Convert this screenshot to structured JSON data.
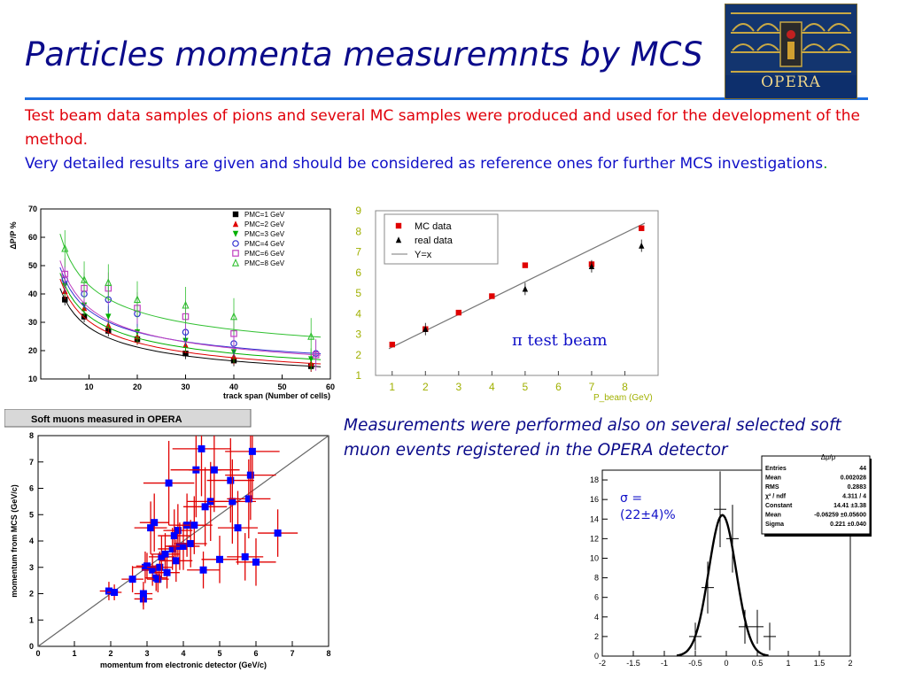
{
  "slide": {
    "title": "Particles momenta measuremnts by MCS",
    "logo_text": "OPERA",
    "para_red": "Test beam data samples of pions  and several MC samples were produced and used for the development of the method.",
    "para_blue": "Very detailed results are given and should be considered as reference ones for further MCS investigations",
    "para_blue_dot": ".",
    "soft_muon_text": "Measurements were performed also on several selected soft muon events registered in the OPERA detector",
    "pi_test_beam": "π test beam",
    "sigma_line1": "σ =",
    "sigma_line2": "(22±4)%"
  },
  "chart_data": [
    {
      "type": "line",
      "ylabel": "ΔP/P %",
      "xlabel": "track span (Number of cells)",
      "xlim": [
        0,
        60
      ],
      "ylim": [
        10,
        70
      ],
      "xticks": [
        10,
        20,
        30,
        40,
        50,
        60
      ],
      "yticks": [
        10,
        20,
        30,
        40,
        50,
        60,
        70
      ],
      "legend_position": "top-right",
      "series": [
        {
          "name": "PMC=1 GeV",
          "color": "#000000",
          "marker": "square-filled",
          "x": [
            5,
            9,
            14,
            20,
            30,
            40,
            56
          ],
          "y": [
            38,
            32,
            27,
            24,
            19,
            16.5,
            14.5
          ]
        },
        {
          "name": "PMC=2 GeV",
          "color": "#e00000",
          "marker": "triangle-filled",
          "x": [
            5,
            9,
            14,
            20,
            30,
            40,
            56
          ],
          "y": [
            41,
            35,
            29,
            25,
            22,
            18,
            15.5
          ]
        },
        {
          "name": "PMC=3 GeV",
          "color": "#00b000",
          "marker": "triangle-down-filled",
          "x": [
            5,
            9,
            14,
            20,
            30,
            40,
            56
          ],
          "y": [
            43,
            36,
            32,
            26.5,
            23.5,
            19.5,
            17
          ]
        },
        {
          "name": "PMC=4 GeV",
          "color": "#3030d0",
          "marker": "circle-open",
          "x": [
            5,
            9,
            14,
            20,
            30,
            40,
            57
          ],
          "y": [
            45,
            40,
            38,
            33,
            26.5,
            22.5,
            19
          ]
        },
        {
          "name": "PMC=6 GeV",
          "color": "#c040c0",
          "marker": "square-open",
          "x": [
            5,
            9,
            14,
            20,
            30,
            40,
            57
          ],
          "y": [
            47,
            42,
            42,
            35,
            32,
            26,
            18.5
          ]
        },
        {
          "name": "PMC=8 GeV",
          "color": "#30c030",
          "marker": "triangle-open",
          "x": [
            5,
            9,
            14,
            20,
            30,
            40,
            56
          ],
          "y": [
            56,
            45,
            44,
            38,
            36,
            32,
            25
          ]
        }
      ]
    },
    {
      "type": "scatter",
      "xlabel": "P_beam (GeV)",
      "ylabel": "",
      "xlim": [
        0.5,
        9
      ],
      "ylim": [
        1,
        9
      ],
      "xticks": [
        1,
        2,
        3,
        4,
        5,
        6,
        7,
        8
      ],
      "yticks": [
        1,
        2,
        3,
        4,
        5,
        6,
        7,
        8,
        9
      ],
      "legend_position": "top-left",
      "series": [
        {
          "name": "MC data",
          "color": "#e00000",
          "marker": "square-filled",
          "x": [
            1,
            2,
            3,
            4,
            5,
            7,
            8.5
          ],
          "y": [
            2.5,
            3.25,
            4.05,
            4.85,
            6.35,
            6.4,
            8.15
          ]
        },
        {
          "name": "real data",
          "color": "#000000",
          "marker": "triangle-filled",
          "x": [
            2,
            5,
            7,
            8.5
          ],
          "y": [
            3.25,
            5.2,
            6.3,
            7.3
          ]
        },
        {
          "name": "Y=x",
          "color": "#777777",
          "marker": "line",
          "x": [
            0.9,
            8.6
          ],
          "y": [
            2.3,
            8.4
          ]
        }
      ]
    },
    {
      "type": "scatter",
      "title": "Soft muons measured in OPERA",
      "xlabel": "momentum from electronic detector (GeV/c)",
      "ylabel": "momentum from MCS (GeV/c)",
      "xlim": [
        0,
        8
      ],
      "ylim": [
        0,
        8
      ],
      "xticks": [
        0,
        1,
        2,
        3,
        4,
        5,
        6,
        7,
        8
      ],
      "yticks": [
        0,
        1,
        2,
        3,
        4,
        5,
        6,
        7,
        8
      ],
      "marker_color": "#0000ff",
      "error_color": "#e00000",
      "x": [
        1.95,
        2.1,
        2.6,
        2.9,
        2.9,
        2.95,
        3.0,
        3.1,
        3.15,
        3.2,
        3.25,
        3.3,
        3.35,
        3.4,
        3.5,
        3.55,
        3.6,
        3.7,
        3.75,
        3.8,
        3.85,
        3.9,
        4.0,
        4.1,
        4.2,
        4.3,
        4.35,
        4.5,
        4.55,
        4.6,
        4.75,
        4.85,
        5.0,
        5.3,
        5.35,
        5.5,
        5.7,
        5.8,
        5.85,
        5.9,
        6.0,
        6.6
      ],
      "y": [
        2.1,
        2.05,
        2.55,
        1.8,
        2.0,
        3.0,
        3.05,
        4.5,
        2.9,
        4.7,
        2.6,
        2.55,
        3.0,
        3.4,
        3.5,
        2.8,
        6.2,
        3.7,
        4.2,
        3.25,
        4.4,
        3.8,
        3.8,
        4.6,
        3.9,
        4.6,
        6.7,
        7.5,
        2.9,
        5.3,
        5.5,
        6.7,
        3.3,
        6.3,
        5.5,
        4.5,
        3.4,
        5.6,
        6.5,
        7.4,
        3.2,
        4.3
      ],
      "xerr": [
        0.25,
        0.2,
        0.3,
        0.25,
        0.25,
        0.35,
        0.3,
        0.45,
        0.3,
        0.4,
        0.3,
        0.3,
        0.35,
        0.35,
        0.4,
        0.35,
        0.7,
        0.4,
        0.45,
        0.45,
        0.4,
        0.4,
        0.45,
        0.5,
        0.45,
        0.5,
        0.7,
        0.8,
        0.45,
        0.6,
        0.65,
        0.7,
        0.5,
        0.65,
        0.65,
        0.55,
        0.5,
        0.6,
        0.7,
        0.75,
        0.55,
        0.55
      ],
      "yerr": [
        0.35,
        0.3,
        0.5,
        0.4,
        0.45,
        0.6,
        0.5,
        1.0,
        0.6,
        1.1,
        0.5,
        0.5,
        0.6,
        0.8,
        0.8,
        0.6,
        1.6,
        0.8,
        1.0,
        0.8,
        1.0,
        0.9,
        0.9,
        1.2,
        0.9,
        1.1,
        1.8,
        1.8,
        0.7,
        1.5,
        1.5,
        1.6,
        0.9,
        1.6,
        1.6,
        1.4,
        0.9,
        1.5,
        1.7,
        1.8,
        0.9,
        0.9
      ],
      "diagonal": true
    },
    {
      "type": "bar",
      "xlabel": "",
      "ylabel": "",
      "xlim": [
        -2,
        2
      ],
      "ylim": [
        0,
        19
      ],
      "xticks": [
        -2,
        -1.5,
        -1,
        -0.5,
        0,
        0.5,
        1,
        1.5,
        2
      ],
      "xticklabels": [
        "-2",
        "-1.5",
        "-1",
        "-0.5",
        "0",
        "0.5",
        "1",
        "1.5",
        "2"
      ],
      "yticks": [
        0,
        2,
        4,
        6,
        8,
        10,
        12,
        14,
        16,
        18
      ],
      "points_x": [
        -0.5,
        -0.3,
        -0.1,
        0.1,
        0.3,
        0.5,
        0.7
      ],
      "points_y": [
        2,
        7,
        15,
        12,
        3,
        3,
        2
      ],
      "fit_gaussian": {
        "constant": 14.41,
        "mean": -0.06259,
        "sigma": 0.221
      },
      "stats_box": {
        "title": "Δp/p",
        "rows": [
          {
            "label": "Entries",
            "value": "44"
          },
          {
            "label": "Mean",
            "value": "0.002028"
          },
          {
            "label": "RMS",
            "value": "0.2883"
          },
          {
            "label": "χ² / ndf",
            "value": "4.311 / 4"
          },
          {
            "label": "Constant",
            "value": "14.41  ±3.38"
          },
          {
            "label": "Mean",
            "value": "-0.06259  ±0.05600"
          },
          {
            "label": "Sigma",
            "value": "0.221  ±0.040"
          }
        ]
      }
    }
  ]
}
